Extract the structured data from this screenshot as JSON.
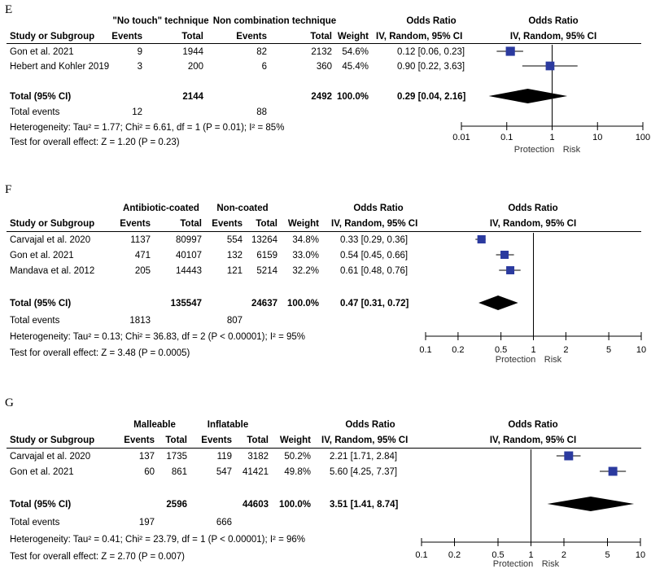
{
  "panels": [
    {
      "label": "E",
      "group1": "\"No touch\" technique",
      "group2": "Non combination technique",
      "col_study": "Study or Subgroup",
      "col_events": "Events",
      "col_total": "Total",
      "col_weight": "Weight",
      "col_or": "Odds Ratio",
      "col_method": "IV, Random, 95% CI",
      "studies": [
        {
          "name": "Gon et al. 2021",
          "e1": "9",
          "t1": "1944",
          "e2": "82",
          "t2": "2132",
          "weight": "54.6%",
          "ci": "0.12 [0.06, 0.23]"
        },
        {
          "name": "Hebert and Kohler 2019",
          "e1": "3",
          "t1": "200",
          "e2": "6",
          "t2": "360",
          "weight": "45.4%",
          "ci": "0.90 [0.22, 3.63]"
        }
      ],
      "total_label": "Total (95% CI)",
      "total_t1": "2144",
      "total_t2": "2492",
      "total_weight": "100.0%",
      "total_ci": "0.29 [0.04, 2.16]",
      "events_label": "Total events",
      "events_e1": "12",
      "events_e2": "88",
      "heterogeneity": "Heterogeneity: Tau² = 1.77; Chi² = 6.61, df = 1 (P = 0.01); I² = 85%",
      "overall": "Test for overall effect: Z = 1.20 (P = 0.23)",
      "axis_left": "Protection",
      "axis_right": "Risk"
    },
    {
      "label": "F",
      "group1": "Antibiotic-coated",
      "group2": "Non-coated",
      "col_study": "Study or Subgroup",
      "col_events": "Events",
      "col_total": "Total",
      "col_weight": "Weight",
      "col_or": "Odds Ratio",
      "col_method": "IV, Random, 95% CI",
      "studies": [
        {
          "name": "Carvajal et al. 2020",
          "e1": "1137",
          "t1": "80997",
          "e2": "554",
          "t2": "13264",
          "weight": "34.8%",
          "ci": "0.33 [0.29, 0.36]"
        },
        {
          "name": "Gon et al. 2021",
          "e1": "471",
          "t1": "40107",
          "e2": "132",
          "t2": "6159",
          "weight": "33.0%",
          "ci": "0.54 [0.45, 0.66]"
        },
        {
          "name": "Mandava et al. 2012",
          "e1": "205",
          "t1": "14443",
          "e2": "121",
          "t2": "5214",
          "weight": "32.2%",
          "ci": "0.61 [0.48, 0.76]"
        }
      ],
      "total_label": "Total (95% CI)",
      "total_t1": "135547",
      "total_t2": "24637",
      "total_weight": "100.0%",
      "total_ci": "0.47 [0.31, 0.72]",
      "events_label": "Total events",
      "events_e1": "1813",
      "events_e2": "807",
      "heterogeneity": "Heterogeneity: Tau² = 0.13; Chi² = 36.83, df = 2 (P < 0.00001); I² = 95%",
      "overall": "Test for overall effect: Z = 3.48 (P = 0.0005)",
      "axis_left": "Protection",
      "axis_right": "Risk"
    },
    {
      "label": "G",
      "group1": "Malleable",
      "group2": "Inflatable",
      "col_study": "Study or Subgroup",
      "col_events": "Events",
      "col_total": "Total",
      "col_weight": "Weight",
      "col_or": "Odds Ratio",
      "col_method": "IV, Random, 95% CI",
      "studies": [
        {
          "name": "Carvajal et al. 2020",
          "e1": "137",
          "t1": "1735",
          "e2": "119",
          "t2": "3182",
          "weight": "50.2%",
          "ci": "2.21 [1.71, 2.84]"
        },
        {
          "name": "Gon et al. 2021",
          "e1": "60",
          "t1": "861",
          "e2": "547",
          "t2": "41421",
          "weight": "49.8%",
          "ci": "5.60 [4.25, 7.37]"
        }
      ],
      "total_label": "Total (95% CI)",
      "total_t1": "2596",
      "total_t2": "44603",
      "total_weight": "100.0%",
      "total_ci": "3.51 [1.41, 8.74]",
      "events_label": "Total events",
      "events_e1": "197",
      "events_e2": "666",
      "heterogeneity": "Heterogeneity: Tau² = 0.41; Chi² = 23.79, df = 1 (P < 0.00001); I² = 96%",
      "overall": "Test for overall effect: Z = 2.70 (P = 0.007)",
      "axis_left": "Protection",
      "axis_right": "Risk"
    }
  ],
  "chart_data": [
    {
      "type": "forest",
      "title": "E",
      "scale": "log",
      "xlim": [
        0.01,
        100
      ],
      "ticks": [
        0.01,
        0.1,
        1,
        10,
        100
      ],
      "tick_labels": [
        "0.01",
        "0.1",
        "1",
        "10",
        "100"
      ],
      "studies": [
        {
          "name": "Gon et al. 2021",
          "or": 0.12,
          "lo": 0.06,
          "hi": 0.23,
          "weight": 54.6
        },
        {
          "name": "Hebert and Kohler 2019",
          "or": 0.9,
          "lo": 0.22,
          "hi": 3.63,
          "weight": 45.4
        }
      ],
      "pooled": {
        "or": 0.29,
        "lo": 0.04,
        "hi": 2.16
      },
      "xlabel_left": "Protection",
      "xlabel_right": "Risk"
    },
    {
      "type": "forest",
      "title": "F",
      "scale": "log",
      "xlim": [
        0.1,
        10
      ],
      "ticks": [
        0.1,
        0.2,
        0.5,
        1,
        2,
        5,
        10
      ],
      "tick_labels": [
        "0.1",
        "0.2",
        "0.5",
        "1",
        "2",
        "5",
        "10"
      ],
      "studies": [
        {
          "name": "Carvajal et al. 2020",
          "or": 0.33,
          "lo": 0.29,
          "hi": 0.36,
          "weight": 34.8
        },
        {
          "name": "Gon et al. 2021",
          "or": 0.54,
          "lo": 0.45,
          "hi": 0.66,
          "weight": 33.0
        },
        {
          "name": "Mandava et al. 2012",
          "or": 0.61,
          "lo": 0.48,
          "hi": 0.76,
          "weight": 32.2
        }
      ],
      "pooled": {
        "or": 0.47,
        "lo": 0.31,
        "hi": 0.72
      },
      "xlabel_left": "Protection",
      "xlabel_right": "Risk"
    },
    {
      "type": "forest",
      "title": "G",
      "scale": "log",
      "xlim": [
        0.1,
        10
      ],
      "ticks": [
        0.1,
        0.2,
        0.5,
        1,
        2,
        5,
        10
      ],
      "tick_labels": [
        "0.1",
        "0.2",
        "0.5",
        "1",
        "2",
        "5",
        "10"
      ],
      "studies": [
        {
          "name": "Carvajal et al. 2020",
          "or": 2.21,
          "lo": 1.71,
          "hi": 2.84,
          "weight": 50.2
        },
        {
          "name": "Gon et al. 2021",
          "or": 5.6,
          "lo": 4.25,
          "hi": 7.37,
          "weight": 49.8
        }
      ],
      "pooled": {
        "or": 3.51,
        "lo": 1.41,
        "hi": 8.74
      },
      "xlabel_left": "Protection",
      "xlabel_right": "Risk"
    }
  ],
  "colors": {
    "marker": "#2b3a9f",
    "diamond": "#000000"
  }
}
